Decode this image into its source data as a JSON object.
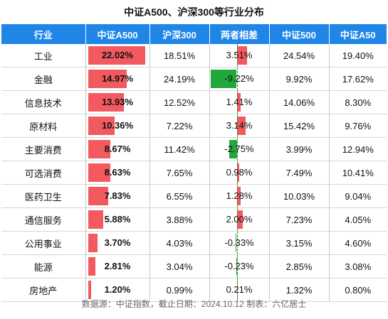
{
  "title": "中证A500、沪深300等行业分布",
  "headers": [
    "行业",
    "中证A500",
    "沪深300",
    "两者相差",
    "中证500",
    "中证A50"
  ],
  "colors": {
    "header_bg": "#1f86e8",
    "positive": "#f25a5f",
    "negative": "#22a83a"
  },
  "chart_data": {
    "type": "table",
    "title": "中证A500、沪深300等行业分布",
    "columns": [
      "行业",
      "中证A500",
      "沪深300",
      "两者相差",
      "中证500",
      "中证A50"
    ],
    "rows": [
      {
        "industry": "工业",
        "a500": "22.02%",
        "hs300": "18.51%",
        "diff": "3.51%",
        "zz500": "24.54%",
        "a50": "19.40%",
        "a500_v": 22.02,
        "diff_v": 3.51
      },
      {
        "industry": "金融",
        "a500": "14.97%",
        "hs300": "24.19%",
        "diff": "-9.22%",
        "zz500": "9.92%",
        "a50": "17.62%",
        "a500_v": 14.97,
        "diff_v": -9.22
      },
      {
        "industry": "信息技术",
        "a500": "13.93%",
        "hs300": "12.52%",
        "diff": "1.41%",
        "zz500": "14.06%",
        "a50": "8.30%",
        "a500_v": 13.93,
        "diff_v": 1.41
      },
      {
        "industry": "原材料",
        "a500": "10.36%",
        "hs300": "7.22%",
        "diff": "3.14%",
        "zz500": "15.42%",
        "a50": "9.76%",
        "a500_v": 10.36,
        "diff_v": 3.14
      },
      {
        "industry": "主要消费",
        "a500": "8.67%",
        "hs300": "11.42%",
        "diff": "-2.75%",
        "zz500": "3.99%",
        "a50": "12.94%",
        "a500_v": 8.67,
        "diff_v": -2.75
      },
      {
        "industry": "可选消费",
        "a500": "8.63%",
        "hs300": "7.65%",
        "diff": "0.98%",
        "zz500": "7.49%",
        "a50": "10.41%",
        "a500_v": 8.63,
        "diff_v": 0.98
      },
      {
        "industry": "医药卫生",
        "a500": "7.83%",
        "hs300": "6.55%",
        "diff": "1.28%",
        "zz500": "10.03%",
        "a50": "9.04%",
        "a500_v": 7.83,
        "diff_v": 1.28
      },
      {
        "industry": "通信服务",
        "a500": "5.88%",
        "hs300": "3.88%",
        "diff": "2.00%",
        "zz500": "7.23%",
        "a50": "4.05%",
        "a500_v": 5.88,
        "diff_v": 2.0
      },
      {
        "industry": "公用事业",
        "a500": "3.70%",
        "hs300": "4.03%",
        "diff": "-0.33%",
        "zz500": "3.15%",
        "a50": "4.60%",
        "a500_v": 3.7,
        "diff_v": -0.33
      },
      {
        "industry": "能源",
        "a500": "2.81%",
        "hs300": "3.04%",
        "diff": "-0.23%",
        "zz500": "2.85%",
        "a50": "3.08%",
        "a500_v": 2.81,
        "diff_v": -0.23
      },
      {
        "industry": "房地产",
        "a500": "1.20%",
        "hs300": "0.99%",
        "diff": "0.21%",
        "zz500": "1.32%",
        "a50": "0.80%",
        "a500_v": 1.2,
        "diff_v": 0.21
      }
    ]
  },
  "footer": "数据源：中证指数，截止日期：2024.10.12  制表：六亿居士"
}
